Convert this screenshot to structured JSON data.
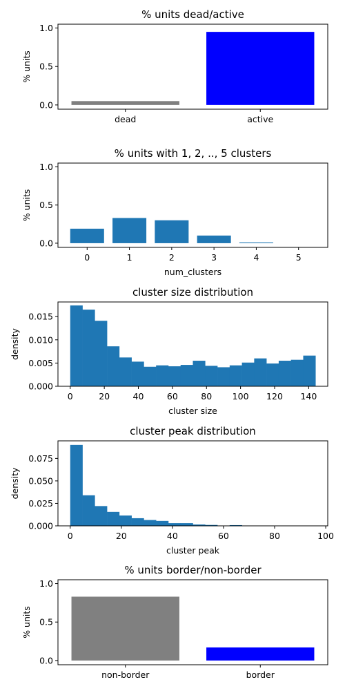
{
  "chart_data": [
    {
      "type": "bar",
      "title": "% units dead/active",
      "xlabel": "",
      "ylabel": "% units",
      "ylim": [
        0,
        1
      ],
      "yticks": [
        "0.0",
        "0.5",
        "1.0"
      ],
      "categories": [
        "dead",
        "active"
      ],
      "values": [
        0.05,
        0.95
      ],
      "colors": [
        "#808080",
        "#0000ff"
      ]
    },
    {
      "type": "bar",
      "title": "% units with 1, 2, .., 5 clusters",
      "xlabel": "num_clusters",
      "ylabel": "% units",
      "ylim": [
        0,
        1
      ],
      "yticks": [
        "0.0",
        "0.5",
        "1.0"
      ],
      "categories": [
        "0",
        "1",
        "2",
        "3",
        "4",
        "5"
      ],
      "values": [
        0.19,
        0.33,
        0.3,
        0.1,
        0.01,
        0.0
      ],
      "colors": [
        "#1f77b4"
      ]
    },
    {
      "type": "bar",
      "title": "cluster size distribution",
      "xlabel": "cluster size",
      "ylabel": "density",
      "ylim": [
        0,
        0.0175
      ],
      "yticks": [
        "0.000",
        "0.005",
        "0.010",
        "0.015"
      ],
      "xticks": [
        "0",
        "20",
        "40",
        "60",
        "80",
        "100",
        "120",
        "140"
      ],
      "bin_width": 7.2,
      "x": [
        0,
        7.2,
        14.4,
        21.6,
        28.8,
        36,
        43.2,
        50.4,
        57.6,
        64.8,
        72,
        79.2,
        86.4,
        93.6,
        100.8,
        108,
        115.2,
        122.4,
        129.6,
        136.8
      ],
      "values": [
        0.0174,
        0.0165,
        0.0141,
        0.0086,
        0.0062,
        0.0053,
        0.0042,
        0.0045,
        0.0043,
        0.0046,
        0.0055,
        0.0044,
        0.0041,
        0.0045,
        0.0051,
        0.006,
        0.0049,
        0.0055,
        0.0057,
        0.0066
      ],
      "colors": [
        "#1f77b4"
      ]
    },
    {
      "type": "bar",
      "title": "cluster peak distribution",
      "xlabel": "cluster peak",
      "ylabel": "density",
      "ylim": [
        0,
        0.09
      ],
      "yticks": [
        "0.000",
        "0.025",
        "0.050",
        "0.075"
      ],
      "xticks": [
        "0",
        "20",
        "40",
        "60",
        "80",
        "100"
      ],
      "bin_width": 4.8,
      "x": [
        0,
        4.8,
        9.6,
        14.4,
        19.2,
        24,
        28.8,
        33.6,
        38.4,
        43.2,
        48,
        52.8,
        57.6,
        62.4,
        67.2,
        72,
        76.8,
        81.6,
        86.4,
        91.2
      ],
      "values": [
        0.09,
        0.034,
        0.022,
        0.0155,
        0.0115,
        0.0085,
        0.0065,
        0.0055,
        0.003,
        0.003,
        0.0015,
        0.001,
        0.0003,
        0.0008,
        0.0002,
        0.0001,
        0.0001,
        0.0001,
        0.0001,
        0.0001
      ],
      "colors": [
        "#1f77b4"
      ]
    },
    {
      "type": "bar",
      "title": "% units border/non-border",
      "xlabel": "",
      "ylabel": "% units",
      "ylim": [
        0,
        1
      ],
      "yticks": [
        "0.0",
        "0.5",
        "1.0"
      ],
      "categories": [
        "non-border",
        "border"
      ],
      "values": [
        0.83,
        0.17
      ],
      "colors": [
        "#808080",
        "#0000ff"
      ]
    }
  ]
}
